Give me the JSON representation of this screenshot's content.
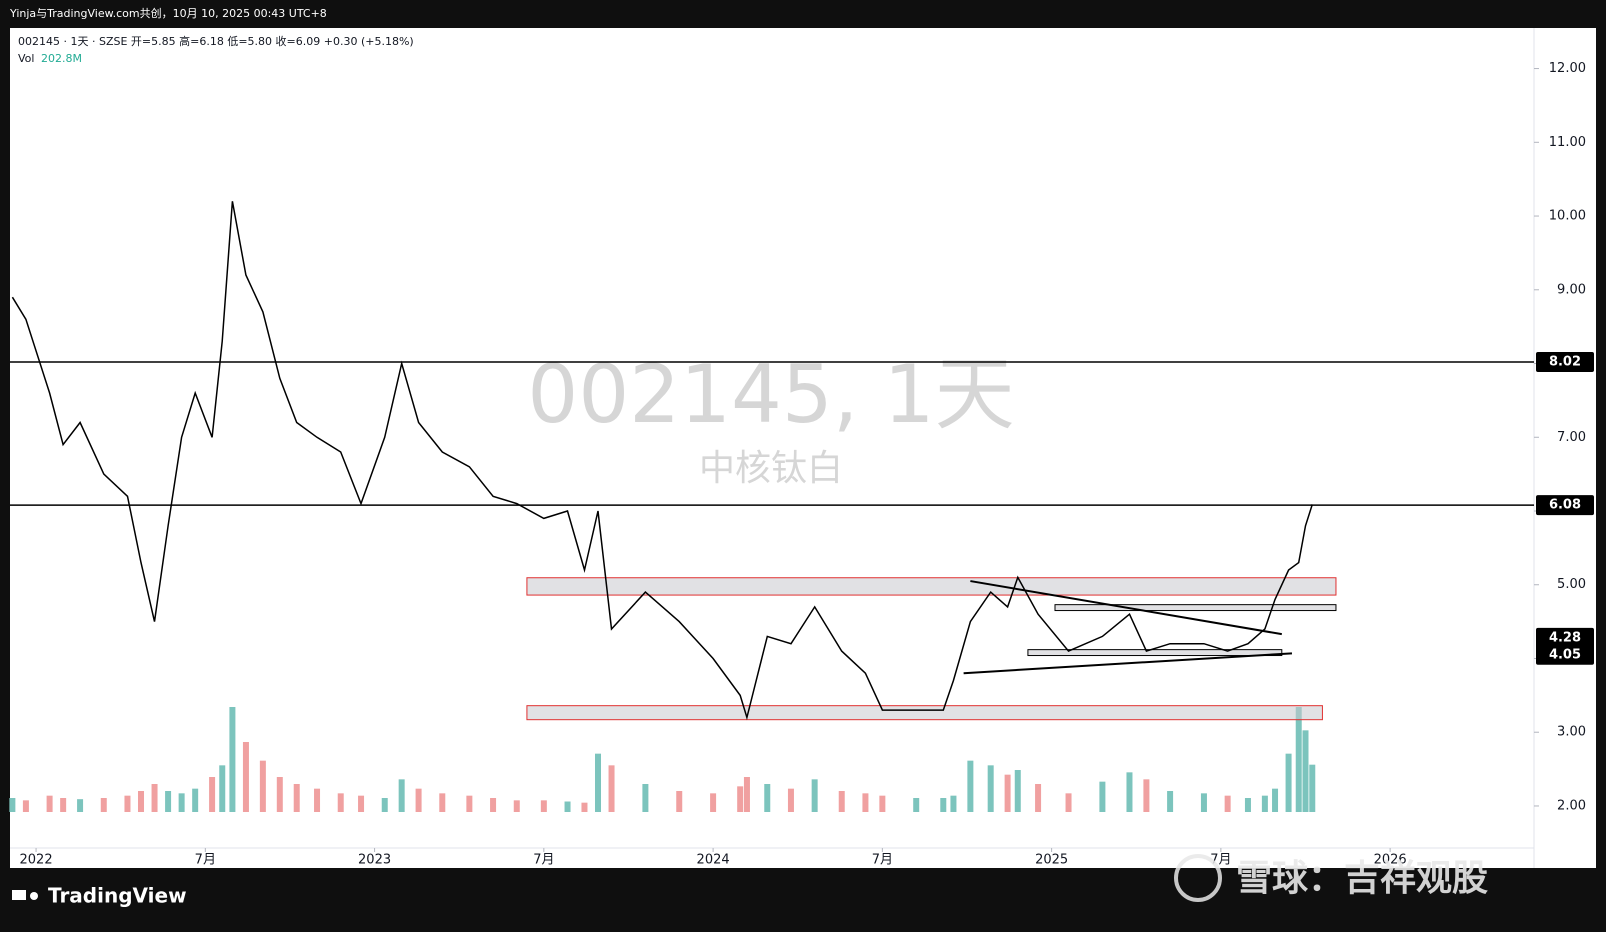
{
  "header": {
    "caption": "Yinja与TradingView.com共创，10月 10, 2025 00:43 UTC+8"
  },
  "legend": {
    "symbol_line": "002145 · 1天 · SZSE  开=5.85  高=6.18  低=5.80  收=6.09  +0.30 (+5.18%)",
    "vol_label": "Vol",
    "vol_value": "202.8M"
  },
  "watermark": {
    "symbol": "002145, 1天",
    "name": "中核钛白"
  },
  "footer": {
    "brand": "TradingView",
    "source": "雪球：吉祥观股"
  },
  "chart_data": {
    "type": "line",
    "color": "#000000",
    "x": [
      2021.93,
      2021.97,
      2022.04,
      2022.08,
      2022.13,
      2022.2,
      2022.27,
      2022.31,
      2022.35,
      2022.39,
      2022.43,
      2022.47,
      2022.52,
      2022.55,
      2022.58,
      2022.62,
      2022.67,
      2022.72,
      2022.77,
      2022.83,
      2022.9,
      2022.96,
      2023.03,
      2023.08,
      2023.13,
      2023.2,
      2023.28,
      2023.35,
      2023.42,
      2023.5,
      2023.57,
      2023.62,
      2023.66,
      2023.7,
      2023.8,
      2023.9,
      2024.0,
      2024.08,
      2024.1,
      2024.16,
      2024.23,
      2024.3,
      2024.38,
      2024.45,
      2024.5,
      2024.6,
      2024.68,
      2024.71,
      2024.76,
      2024.82,
      2024.87,
      2024.9,
      2024.96,
      2025.05,
      2025.15,
      2025.23,
      2025.28,
      2025.35,
      2025.45,
      2025.52,
      2025.58,
      2025.63,
      2025.66,
      2025.7,
      2025.73,
      2025.75,
      2025.77
    ],
    "series": [
      {
        "name": "002145",
        "color": "#000000",
        "values": [
          8.9,
          8.6,
          7.6,
          6.9,
          7.2,
          6.5,
          6.2,
          5.3,
          4.5,
          5.8,
          7.0,
          7.6,
          7.0,
          8.3,
          10.2,
          9.2,
          8.7,
          7.8,
          7.2,
          7.0,
          6.8,
          6.1,
          7.0,
          8.0,
          7.2,
          6.8,
          6.6,
          6.2,
          6.1,
          5.9,
          6.0,
          5.2,
          6.0,
          4.4,
          4.9,
          4.5,
          4.0,
          3.5,
          3.2,
          4.3,
          4.2,
          4.7,
          4.1,
          3.8,
          3.3,
          3.3,
          3.3,
          3.7,
          4.5,
          4.9,
          4.7,
          5.1,
          4.6,
          4.1,
          4.3,
          4.6,
          4.1,
          4.2,
          4.2,
          4.1,
          4.2,
          4.4,
          4.8,
          5.2,
          5.3,
          5.8,
          6.09
        ]
      },
      {
        "name": "Vol",
        "axis": "y2",
        "up_color": "#7cc4bd",
        "down_color": "#f0a0a0",
        "values": [
          60,
          50,
          70,
          60,
          55,
          60,
          70,
          90,
          120,
          90,
          80,
          100,
          150,
          200,
          450,
          300,
          220,
          150,
          120,
          100,
          80,
          70,
          60,
          140,
          100,
          80,
          70,
          60,
          50,
          50,
          45,
          40,
          250,
          200,
          120,
          90,
          80,
          110,
          150,
          120,
          100,
          140,
          90,
          80,
          70,
          60,
          60,
          70,
          220,
          200,
          160,
          180,
          120,
          80,
          130,
          170,
          140,
          90,
          80,
          70,
          60,
          70,
          100,
          250,
          450,
          350,
          202.8
        ]
      }
    ],
    "xlim": [
      2021.923,
      2026.425
    ],
    "xticks": [
      2022,
      {
        "value": 2022.5,
        "label": "7月"
      },
      2023,
      {
        "value": 2023.5,
        "label": "7月"
      },
      2024,
      {
        "value": 2024.5,
        "label": "7月"
      },
      2025,
      {
        "value": 2025.5,
        "label": "7月"
      },
      2026
    ],
    "ylim": [
      1.43,
      12.55
    ],
    "yticks": [
      {
        "value": 2,
        "label": "2.00"
      },
      {
        "value": 3,
        "label": "3.00"
      },
      {
        "value": 4,
        "label": "4.00"
      },
      {
        "value": 5,
        "label": "5.00"
      },
      {
        "value": 6,
        "label": "6.00"
      },
      {
        "value": 7,
        "label": "7.00"
      },
      {
        "value": 8,
        "label": "8.00"
      },
      {
        "value": 9,
        "label": "9.00"
      },
      {
        "value": 10,
        "label": "10.00"
      },
      {
        "value": 11,
        "label": "11.00"
      },
      {
        "value": 12,
        "label": "12.00"
      }
    ],
    "y2lim": [
      0,
      600
    ],
    "levels": [
      8.02,
      6.08
    ],
    "price_labels": [
      8.02,
      6.08,
      4.28,
      4.05
    ],
    "zones": [
      {
        "x": [
          2023.45,
          2025.84
        ],
        "y": [
          4.86,
          5.095
        ],
        "border": "#e03030"
      },
      {
        "x": [
          2023.45,
          2025.8
        ],
        "y": [
          3.17,
          3.36
        ],
        "border": "#e03030"
      },
      {
        "x": [
          2025.01,
          2025.84
        ],
        "y": [
          4.65,
          4.73
        ],
        "border": "#000000"
      },
      {
        "x": [
          2024.93,
          2025.68
        ],
        "y": [
          4.04,
          4.12
        ],
        "border": "#000000"
      }
    ],
    "trendlines": [
      {
        "x": [
          2024.76,
          2025.68
        ],
        "y": [
          5.05,
          4.33
        ]
      },
      {
        "x": [
          2024.74,
          2025.71
        ],
        "y": [
          3.8,
          4.07
        ]
      }
    ]
  }
}
